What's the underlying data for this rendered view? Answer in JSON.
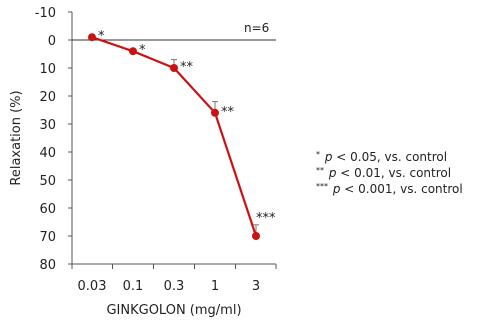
{
  "chart_data": {
    "type": "line",
    "x": [
      "0.03",
      "0.1",
      "0.3",
      "1",
      "3"
    ],
    "y": [
      -1,
      4,
      10,
      26,
      70
    ],
    "errors": [
      0,
      0,
      3,
      4,
      4
    ],
    "significance": [
      "*",
      "*",
      "**",
      "**",
      "***"
    ],
    "xlabel": "GINKGOLON (mg/ml)",
    "ylabel": "Relaxation (%)",
    "ylim": [
      -10,
      80
    ],
    "yticks": [
      "-10",
      "0",
      "10",
      "20",
      "30",
      "40",
      "50",
      "60",
      "70",
      "80"
    ],
    "y_inverted": true,
    "annotation": "n=6",
    "series_color": "#cc1111",
    "legend": [
      {
        "stars": "*",
        "p": "p",
        "text": " < 0.05, vs. control"
      },
      {
        "stars": "**",
        "p": "p",
        "text": " < 0.01, vs. control"
      },
      {
        "stars": "***",
        "p": "p",
        "text": " < 0.001, vs. control"
      }
    ]
  }
}
